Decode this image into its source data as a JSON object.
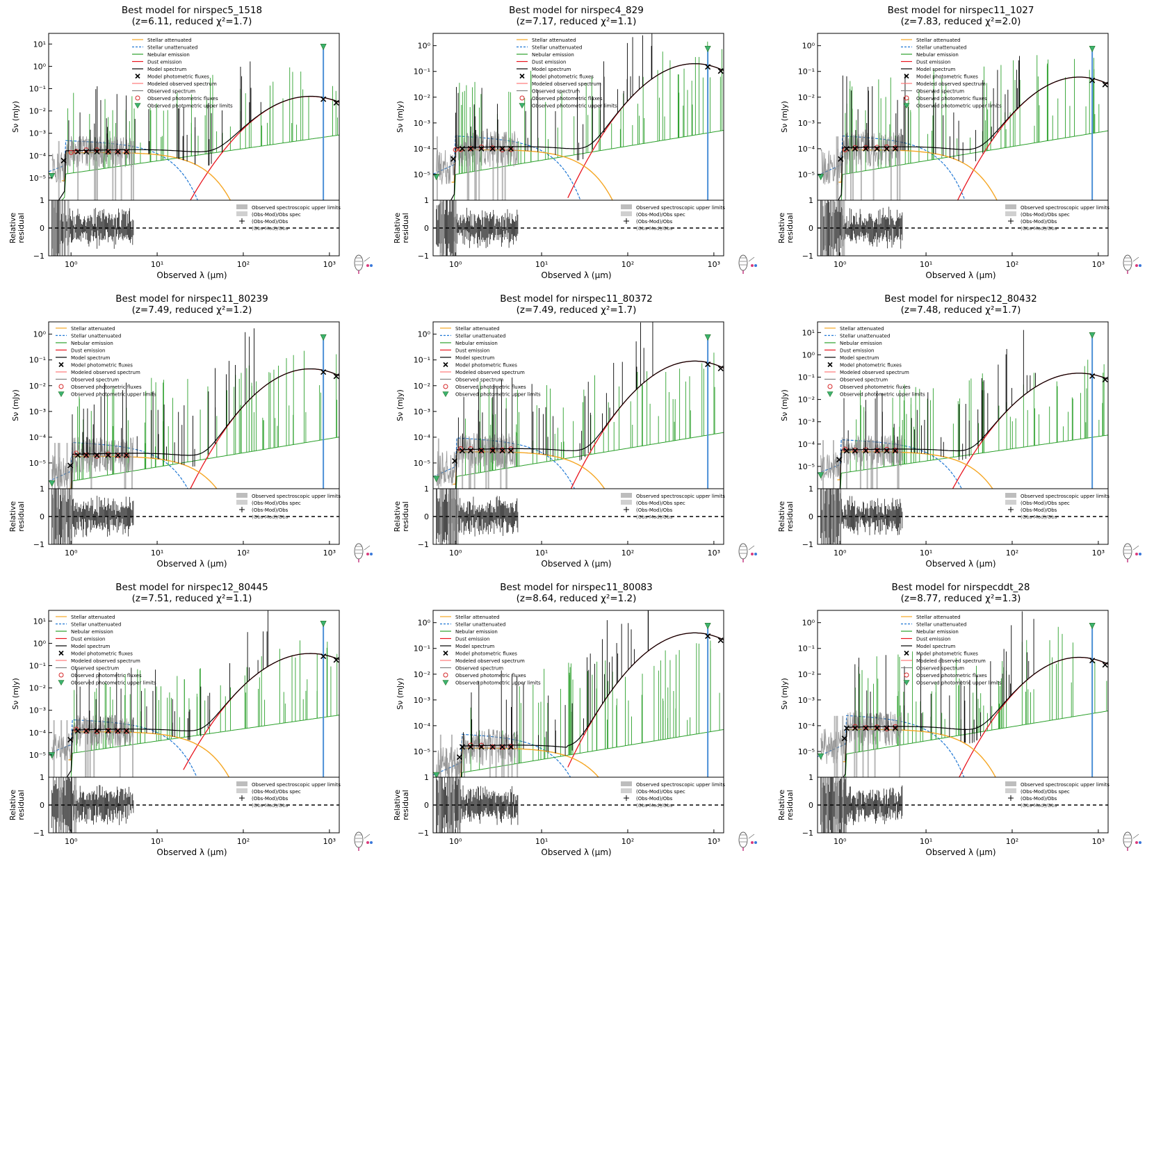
{
  "legend_entries": [
    "Stellar attenuated",
    "Stellar unattenuated",
    "Nebular emission",
    "Dust emission",
    "Model spectrum",
    "Model photometric fluxes",
    "Modeled observed spectrum",
    "Observed spectrum",
    "Observed photometric fluxes",
    "Observed photometric upper limits"
  ],
  "residual_legend_entries": [
    "Observed spectroscopic upper limits",
    "(Obs-Mod)/Obs spec",
    "(Obs-Mod)/Obs",
    "(Obs-Mod)/Obs"
  ],
  "ylabel_sed": "Sν (mJy)",
  "ylabel_residual": [
    "Relative",
    "residual"
  ],
  "xlabel": "Observed λ (μm)",
  "colors": {
    "stellar_attenuated": "#f5a623",
    "stellar_unattenuated": "#1f77d4",
    "nebular": "#2ca02c",
    "dust": "#e8141e",
    "model": "#000000",
    "obs_spectrum": "#7f7f7f",
    "obs_fluxes": "#d62728",
    "upper_limits": "#3cb371",
    "vertical_marker": "#4b8fd6"
  },
  "chart_data": [
    {
      "type": "line",
      "title": "Best model for nirspec5_1518",
      "subtitle": "(z=6.11, reduced χ²=1.7)",
      "z": 6.11,
      "chi2": 1.7,
      "xscale": "log",
      "yscale": "log",
      "xlim": [
        0.55,
        1300
      ],
      "ylim": [
        1e-06,
        30
      ],
      "yticks": [
        "10¹",
        "10⁰",
        "10⁻¹",
        "10⁻²",
        "10⁻³",
        "10⁻⁴",
        "10⁻⁵"
      ],
      "xticks": [
        "10⁰",
        "10¹",
        "10²",
        "10³"
      ],
      "rticks": [
        "1",
        "0",
        "−1"
      ],
      "residual_ylim": [
        -1,
        1
      ],
      "model_level": 0.00015,
      "dust_peak": 0.045,
      "legend": "top-center"
    },
    {
      "type": "line",
      "title": "Best model for nirspec4_829",
      "subtitle": "(z=7.17, reduced χ²=1.1)",
      "z": 7.17,
      "chi2": 1.1,
      "xscale": "log",
      "yscale": "log",
      "xlim": [
        0.55,
        1300
      ],
      "ylim": [
        1e-06,
        3
      ],
      "yticks": [
        "10⁰",
        "10⁻¹",
        "10⁻²",
        "10⁻³",
        "10⁻⁴",
        "10⁻⁵"
      ],
      "xticks": [
        "10⁰",
        "10¹",
        "10²",
        "10³"
      ],
      "rticks": [
        "1",
        "0",
        "−1"
      ],
      "residual_ylim": [
        -1,
        1
      ],
      "model_level": 0.0001,
      "dust_peak": 0.2,
      "legend": "top-center"
    },
    {
      "type": "line",
      "title": "Best model for nirspec11_1027",
      "subtitle": "(z=7.83, reduced χ²=2.0)",
      "z": 7.83,
      "chi2": 2.0,
      "xscale": "log",
      "yscale": "log",
      "xlim": [
        0.55,
        1300
      ],
      "ylim": [
        1e-06,
        3
      ],
      "yticks": [
        "10⁰",
        "10⁻¹",
        "10⁻²",
        "10⁻³",
        "10⁻⁴",
        "10⁻⁵"
      ],
      "xticks": [
        "10⁰",
        "10¹",
        "10²",
        "10³"
      ],
      "rticks": [
        "1",
        "0",
        "−1"
      ],
      "residual_ylim": [
        -1,
        1
      ],
      "model_level": 0.0001,
      "dust_peak": 0.06,
      "legend": "top-center"
    },
    {
      "type": "line",
      "title": "Best model for nirspec11_80239",
      "subtitle": "(z=7.49, reduced χ²=1.2)",
      "z": 7.49,
      "chi2": 1.2,
      "xscale": "log",
      "yscale": "log",
      "xlim": [
        0.55,
        1300
      ],
      "ylim": [
        1e-06,
        3
      ],
      "yticks": [
        "10⁰",
        "10⁻¹",
        "10⁻²",
        "10⁻³",
        "10⁻⁴",
        "10⁻⁵"
      ],
      "xticks": [
        "10⁰",
        "10¹",
        "10²",
        "10³"
      ],
      "rticks": [
        "1",
        "0",
        "−1"
      ],
      "residual_ylim": [
        -1,
        1
      ],
      "model_level": 2e-05,
      "dust_peak": 0.045,
      "legend": "top-left"
    },
    {
      "type": "line",
      "title": "Best model for nirspec11_80372",
      "subtitle": "(z=7.49, reduced χ²=1.7)",
      "z": 7.49,
      "chi2": 1.7,
      "xscale": "log",
      "yscale": "log",
      "xlim": [
        0.55,
        1300
      ],
      "ylim": [
        1e-06,
        3
      ],
      "yticks": [
        "10⁰",
        "10⁻¹",
        "10⁻²",
        "10⁻³",
        "10⁻⁴",
        "10⁻⁵"
      ],
      "xticks": [
        "10⁰",
        "10¹",
        "10²",
        "10³"
      ],
      "rticks": [
        "1",
        "0",
        "−1"
      ],
      "residual_ylim": [
        -1,
        1
      ],
      "model_level": 3e-05,
      "dust_peak": 0.09,
      "legend": "top-left"
    },
    {
      "type": "line",
      "title": "Best model for nirspec12_80432",
      "subtitle": "(z=7.48, reduced χ²=1.7)",
      "z": 7.48,
      "chi2": 1.7,
      "xscale": "log",
      "yscale": "log",
      "xlim": [
        0.55,
        1300
      ],
      "ylim": [
        1e-06,
        30
      ],
      "yticks": [
        "10¹",
        "10⁰",
        "10⁻¹",
        "10⁻²",
        "10⁻³",
        "10⁻⁴",
        "10⁻⁵"
      ],
      "xticks": [
        "10⁰",
        "10¹",
        "10²",
        "10³"
      ],
      "rticks": [
        "1",
        "0",
        "−1"
      ],
      "residual_ylim": [
        -1,
        1
      ],
      "model_level": 5e-05,
      "dust_peak": 0.15,
      "legend": "top-left"
    },
    {
      "type": "line",
      "title": "Best model for nirspec12_80445",
      "subtitle": "(z=7.51, reduced χ²=1.1)",
      "z": 7.51,
      "chi2": 1.1,
      "xscale": "log",
      "yscale": "log",
      "xlim": [
        0.55,
        1300
      ],
      "ylim": [
        1e-06,
        30
      ],
      "yticks": [
        "10¹",
        "10⁰",
        "10⁻¹",
        "10⁻²",
        "10⁻³",
        "10⁻⁴",
        "10⁻⁵"
      ],
      "xticks": [
        "10⁰",
        "10¹",
        "10²",
        "10³"
      ],
      "rticks": [
        "1",
        "0",
        "−1"
      ],
      "residual_ylim": [
        -1,
        1
      ],
      "model_level": 0.00012,
      "dust_peak": 0.35,
      "legend": "top-left"
    },
    {
      "type": "line",
      "title": "Best model for nirspec11_80083",
      "subtitle": "(z=8.64, reduced χ²=1.2)",
      "z": 8.64,
      "chi2": 1.2,
      "xscale": "log",
      "yscale": "log",
      "xlim": [
        0.55,
        1300
      ],
      "ylim": [
        1e-06,
        3
      ],
      "yticks": [
        "10⁰",
        "10⁻¹",
        "10⁻²",
        "10⁻³",
        "10⁻⁴",
        "10⁻⁵"
      ],
      "xticks": [
        "10⁰",
        "10¹",
        "10²",
        "10³"
      ],
      "rticks": [
        "1",
        "0",
        "−1"
      ],
      "residual_ylim": [
        -1,
        1
      ],
      "model_level": 1.5e-05,
      "dust_peak": 0.4,
      "legend": "top-left"
    },
    {
      "type": "line",
      "title": "Best model for nirspecddt_28",
      "subtitle": "(z=8.77, reduced χ²=1.3)",
      "z": 8.77,
      "chi2": 1.3,
      "xscale": "log",
      "yscale": "log",
      "xlim": [
        0.55,
        1300
      ],
      "ylim": [
        1e-06,
        3
      ],
      "yticks": [
        "10⁰",
        "10⁻¹",
        "10⁻²",
        "10⁻³",
        "10⁻⁴",
        "10⁻⁵"
      ],
      "xticks": [
        "10⁰",
        "10¹",
        "10²",
        "10³"
      ],
      "rticks": [
        "1",
        "0",
        "−1"
      ],
      "residual_ylim": [
        -1,
        1
      ],
      "model_level": 8e-05,
      "dust_peak": 0.045,
      "legend": "top-center"
    }
  ]
}
